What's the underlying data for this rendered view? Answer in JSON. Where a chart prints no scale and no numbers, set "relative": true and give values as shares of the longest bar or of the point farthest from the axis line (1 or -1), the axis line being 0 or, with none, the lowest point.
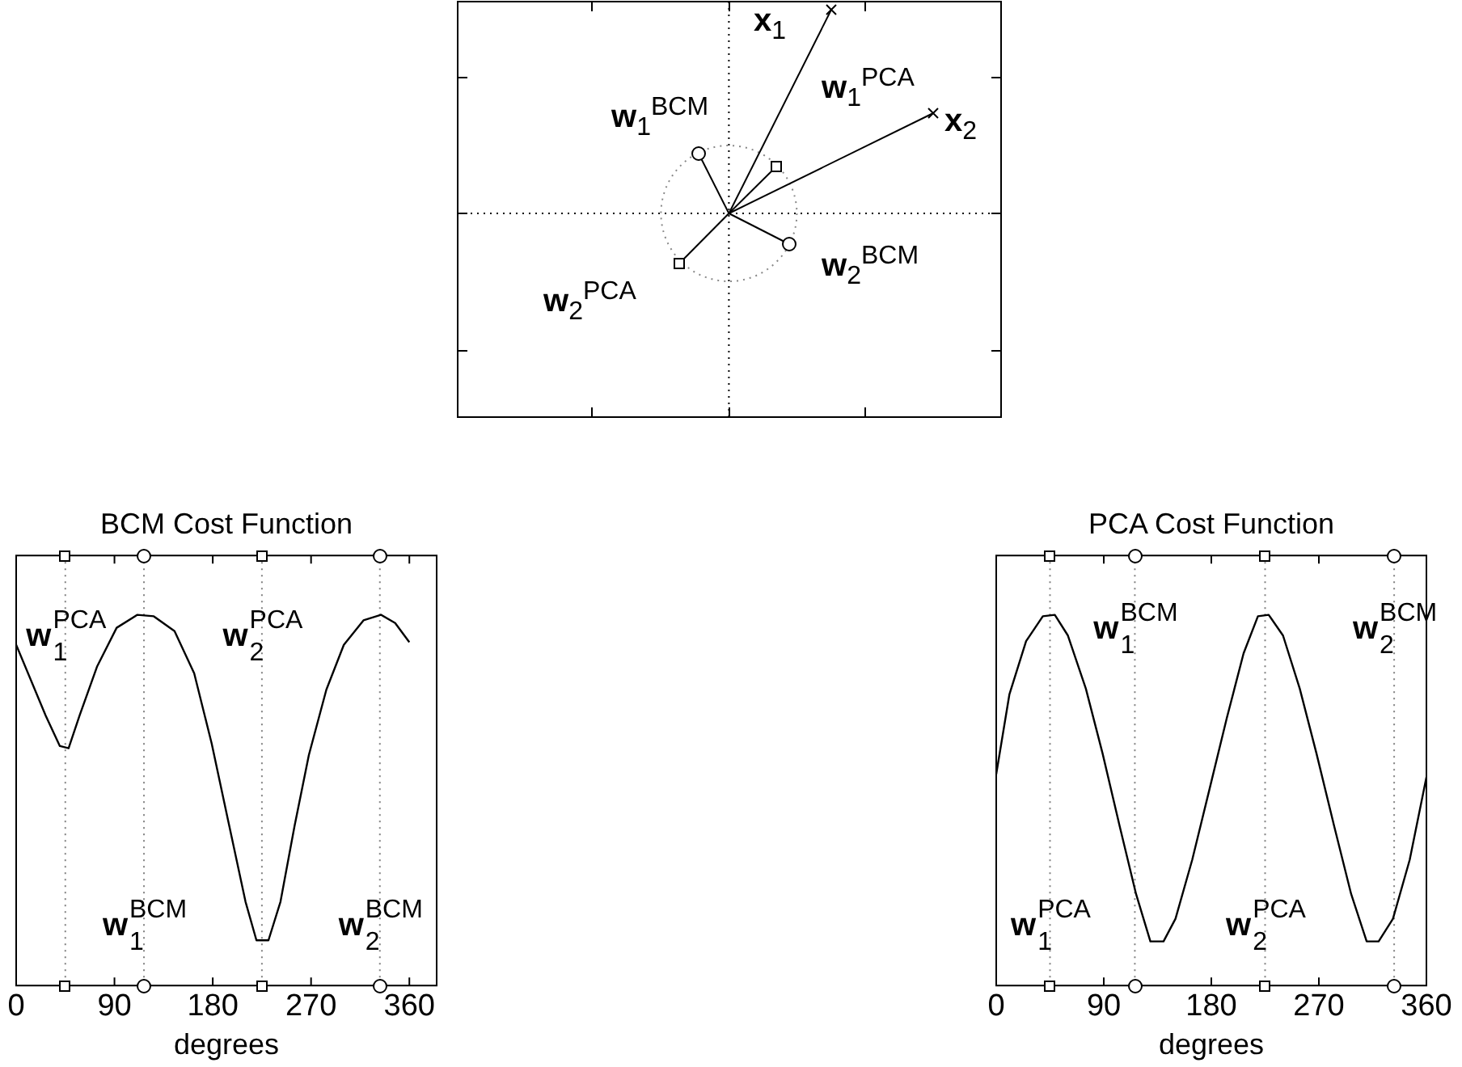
{
  "chart_data": [
    {
      "type": "other",
      "annotations": [
        "x$_{1}$",
        "w$_{1}$$^{PCA}$",
        "x$_{2}$",
        "w$_{1}$$^{BCM}$",
        "w$_{2}$$^{BCM}$",
        "w$_{2}$$^{PCA}$"
      ]
    },
    {
      "type": "line",
      "title": "BCM Cost Function",
      "xlabel": "degrees",
      "relative": true,
      "marker": "none",
      "grid": false,
      "x": [
        0,
        27,
        40,
        48,
        58,
        74,
        92,
        111,
        126,
        145,
        163,
        179,
        195,
        210,
        220,
        231,
        242,
        255,
        268,
        284,
        300,
        318,
        334,
        347,
        360
      ],
      "series": [
        {
          "color": "#000000",
          "values": [
            0.919,
            0.728,
            0.646,
            0.64,
            0.728,
            0.86,
            0.965,
            1.0,
            0.996,
            0.956,
            0.842,
            0.653,
            0.432,
            0.226,
            0.122,
            0.122,
            0.226,
            0.432,
            0.622,
            0.798,
            0.919,
            0.985,
            1.0,
            0.978,
            0.926
          ]
        }
      ],
      "xlim": [
        0,
        385
      ],
      "xticks": [
        0,
        90,
        180,
        270,
        360
      ],
      "ref_lines": [
        {
          "axis": "x",
          "value": 45,
          "color": "#808080",
          "line_style": "dotted"
        },
        {
          "axis": "x",
          "value": 117,
          "color": "#808080",
          "line_style": "dotted"
        },
        {
          "axis": "x",
          "value": 225,
          "color": "#808080",
          "line_style": "dotted"
        },
        {
          "axis": "x",
          "value": 333,
          "color": "#808080",
          "line_style": "dotted"
        }
      ],
      "annotations": [
        {
          "text": "w$_{1}$$^{PCA}$",
          "x": 45,
          "y": 0.94
        },
        {
          "text": "w$_{2}$$^{PCA}$",
          "x": 225,
          "y": 0.94
        },
        {
          "text": "w$_{1}$$^{BCM}$",
          "x": 117,
          "y": 0.16
        },
        {
          "text": "w$_{2}$$^{BCM}$",
          "x": 333,
          "y": 0.16
        }
      ]
    },
    {
      "type": "line",
      "title": "PCA Cost Function",
      "xlabel": "degrees",
      "relative": true,
      "marker": "none",
      "grid": false,
      "x": [
        0,
        11,
        25,
        39,
        49,
        60,
        75,
        89,
        103,
        117,
        129,
        140,
        150,
        164,
        178.5,
        193,
        207,
        219,
        228,
        240,
        254,
        268,
        282.5,
        297,
        310,
        320,
        332,
        346,
        360
      ],
      "series": [
        {
          "color": "#000000",
          "values": [
            0.57,
            0.785,
            0.929,
            0.996,
            1.0,
            0.944,
            0.801,
            0.626,
            0.434,
            0.247,
            0.119,
            0.119,
            0.18,
            0.339,
            0.53,
            0.722,
            0.896,
            0.996,
            1.0,
            0.944,
            0.801,
            0.626,
            0.434,
            0.247,
            0.119,
            0.119,
            0.18,
            0.339,
            0.562
          ]
        }
      ],
      "xlim": [
        0,
        360
      ],
      "xticks": [
        0,
        90,
        180,
        270,
        360
      ],
      "ref_lines": [
        {
          "axis": "x",
          "value": 45,
          "color": "#808080",
          "line_style": "dotted"
        },
        {
          "axis": "x",
          "value": 116,
          "color": "#808080",
          "line_style": "dotted"
        },
        {
          "axis": "x",
          "value": 225,
          "color": "#808080",
          "line_style": "dotted"
        },
        {
          "axis": "x",
          "value": 333,
          "color": "#808080",
          "line_style": "dotted"
        }
      ],
      "annotations": [
        {
          "text": "w$_{1}$$^{BCM}$",
          "x": 116,
          "y": 0.96
        },
        {
          "text": "w$_{2}$$^{BCM}$",
          "x": 333,
          "y": 0.96
        },
        {
          "text": "w$_{1}$$^{PCA}$",
          "x": 45,
          "y": 0.16
        },
        {
          "text": "w$_{2}$$^{PCA}$",
          "x": 225,
          "y": 0.16
        }
      ]
    }
  ]
}
